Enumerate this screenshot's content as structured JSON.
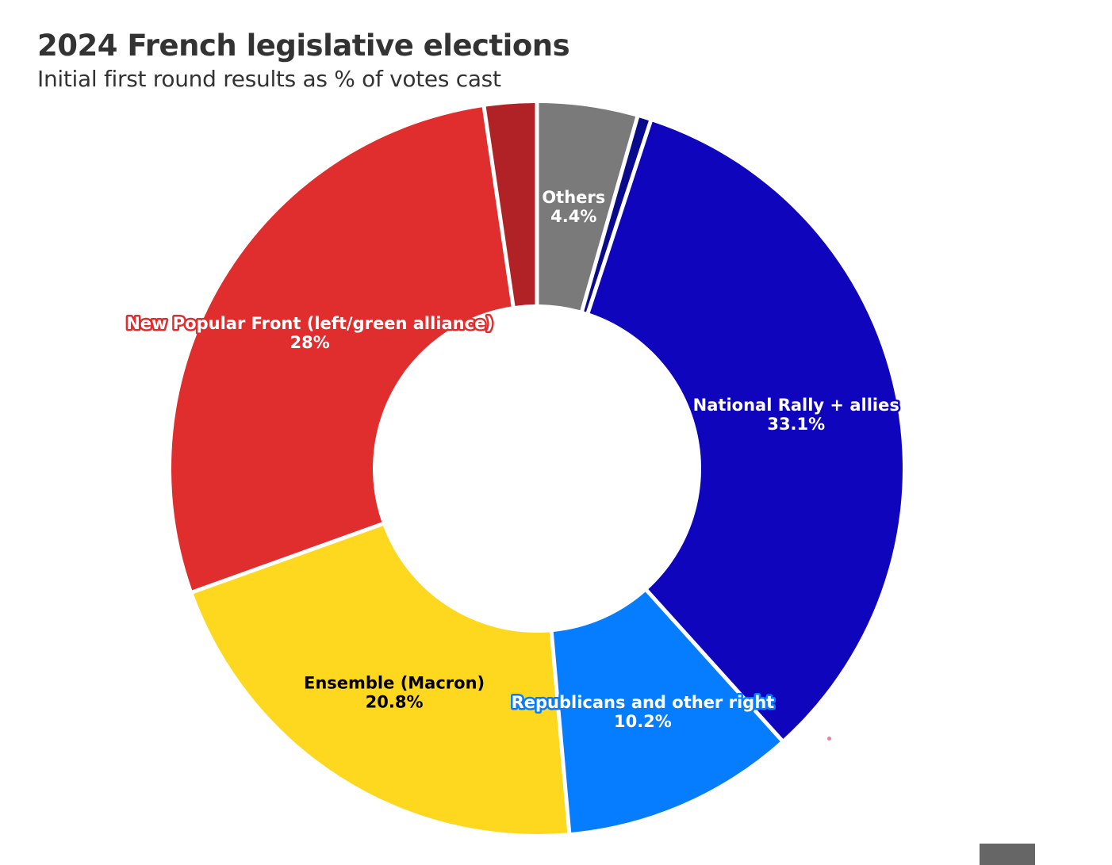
{
  "chart_data": {
    "type": "pie",
    "title": "2024 French legislative elections",
    "subtitle": "Initial first round results as % of votes cast",
    "donut": true,
    "slices": [
      {
        "id": "others",
        "label": "Others",
        "value": 4.4,
        "value_label": "4.4%",
        "color": "#7a7a7a",
        "label_color": "#ffffff",
        "label_stroke": "#7a7a7a"
      },
      {
        "id": "far-right-small",
        "label": "",
        "value": 0.6,
        "value_label": "",
        "color": "#0a0a8c",
        "label_color": "#ffffff",
        "label_stroke": "#0a0a8c"
      },
      {
        "id": "national-rally",
        "label": "National Rally + allies",
        "value": 33.1,
        "value_label": "33.1%",
        "color": "#0f05bd",
        "label_color": "#ffffff",
        "label_stroke": "#0f05bd"
      },
      {
        "id": "republicans",
        "label": "Republicans and other right",
        "value": 10.2,
        "value_label": "10.2%",
        "color": "#067dff",
        "label_color": "#ffffff",
        "label_stroke": "#067dff"
      },
      {
        "id": "ensemble",
        "label": "Ensemble (Macron)",
        "value": 20.8,
        "value_label": "20.8%",
        "color": "#fdd81e",
        "label_color": "#000000",
        "label_stroke": "#fdd81e"
      },
      {
        "id": "new-popular-front",
        "label": "New Popular Front (left/green alliance)",
        "value": 28.0,
        "value_label": "28%",
        "color": "#e02e2e",
        "label_color": "#ffffff",
        "label_stroke": "#e02e2e"
      },
      {
        "id": "far-left-small",
        "label": "",
        "value": 2.3,
        "value_label": "",
        "color": "#b02226",
        "label_color": "#ffffff",
        "label_stroke": "#b02226"
      }
    ]
  }
}
